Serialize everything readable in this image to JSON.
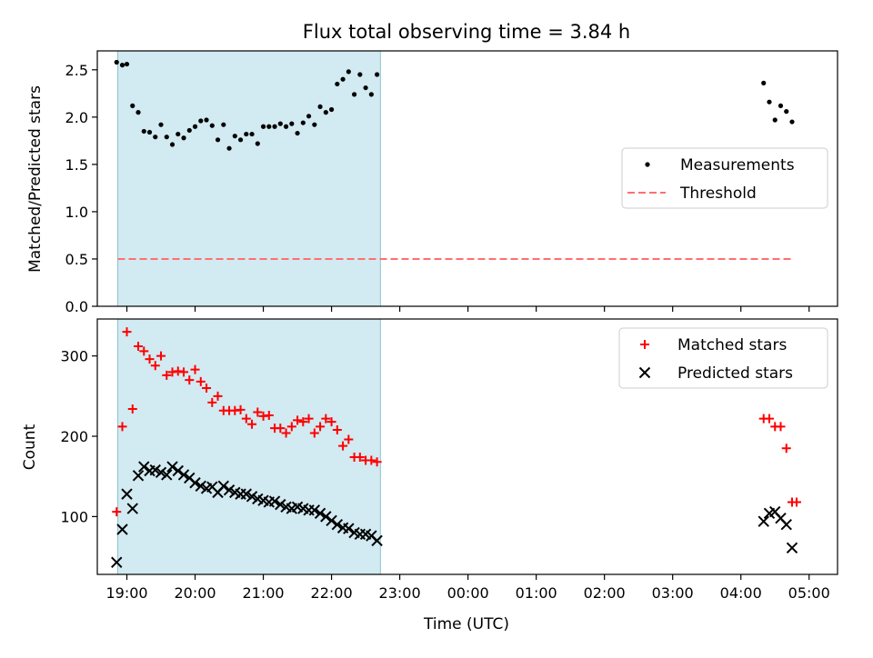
{
  "figure_title": "Flux total observing time = 3.84 h",
  "colors": {
    "shade": "#add8e6",
    "threshold": "#ff6f6f",
    "matched": "#ff0000",
    "predicted": "#000000",
    "measurement": "#000000"
  },
  "chart_data": [
    {
      "type": "scatter",
      "title": "Flux total observing time = 3.84 h",
      "xlabel": "",
      "ylabel": "Matched/Predicted stars",
      "ylim": [
        0,
        2.7
      ],
      "yticks": [
        "0.0",
        "0.5",
        "1.0",
        "1.5",
        "2.0",
        "2.5"
      ],
      "shaded_interval": [
        "18:52",
        "22:43"
      ],
      "legend_position": "center-right",
      "series": [
        {
          "name": "Measurements",
          "marker": "dot",
          "x": [
            "18:51",
            "18:56",
            "19:00",
            "19:05",
            "19:10",
            "19:15",
            "19:20",
            "19:25",
            "19:30",
            "19:35",
            "19:40",
            "19:45",
            "19:50",
            "19:55",
            "20:00",
            "20:05",
            "20:10",
            "20:15",
            "20:20",
            "20:25",
            "20:30",
            "20:35",
            "20:40",
            "20:45",
            "20:50",
            "20:55",
            "21:00",
            "21:05",
            "21:10",
            "21:15",
            "21:20",
            "21:25",
            "21:30",
            "21:35",
            "21:40",
            "21:45",
            "21:50",
            "21:55",
            "22:00",
            "22:05",
            "22:10",
            "22:15",
            "22:20",
            "22:25",
            "22:30",
            "22:35",
            "22:40",
            "04:20",
            "04:25",
            "04:30",
            "04:35",
            "04:40",
            "04:45"
          ],
          "y": [
            2.58,
            2.55,
            2.56,
            2.12,
            2.05,
            1.85,
            1.84,
            1.79,
            1.92,
            1.79,
            1.71,
            1.82,
            1.78,
            1.86,
            1.9,
            1.96,
            1.97,
            1.91,
            1.76,
            1.92,
            1.67,
            1.8,
            1.76,
            1.82,
            1.82,
            1.72,
            1.9,
            1.9,
            1.9,
            1.93,
            1.9,
            1.93,
            1.83,
            1.94,
            2.01,
            1.92,
            2.11,
            2.05,
            2.08,
            2.35,
            2.4,
            2.48,
            2.24,
            2.45,
            2.31,
            2.24,
            2.45,
            2.36,
            2.16,
            1.97,
            2.12,
            2.06,
            1.95
          ]
        },
        {
          "name": "Threshold",
          "style": "dashed-line",
          "x": [
            "18:52",
            "04:45"
          ],
          "y": [
            0.5,
            0.5
          ]
        }
      ]
    },
    {
      "type": "scatter",
      "title": "",
      "xlabel": "Time (UTC)",
      "ylabel": "Count",
      "ylim": [
        28,
        346
      ],
      "yticks": [
        "100",
        "200",
        "300"
      ],
      "xticks": [
        "19:00",
        "20:00",
        "21:00",
        "22:00",
        "23:00",
        "00:00",
        "01:00",
        "02:00",
        "03:00",
        "04:00",
        "05:00"
      ],
      "shaded_interval": [
        "18:52",
        "22:43"
      ],
      "legend_position": "top-right",
      "series": [
        {
          "name": "Matched stars",
          "marker": "plus",
          "x": [
            "18:51",
            "18:56",
            "19:00",
            "19:05",
            "19:10",
            "19:15",
            "19:20",
            "19:25",
            "19:30",
            "19:35",
            "19:40",
            "19:45",
            "19:50",
            "19:55",
            "20:00",
            "20:05",
            "20:10",
            "20:15",
            "20:20",
            "20:25",
            "20:30",
            "20:35",
            "20:40",
            "20:45",
            "20:50",
            "20:55",
            "21:00",
            "21:05",
            "21:10",
            "21:15",
            "21:20",
            "21:25",
            "21:30",
            "21:35",
            "21:40",
            "21:45",
            "21:50",
            "21:55",
            "22:00",
            "22:05",
            "22:10",
            "22:15",
            "22:20",
            "22:25",
            "22:30",
            "22:35",
            "22:40",
            "04:20",
            "04:25",
            "04:30",
            "04:35",
            "04:40",
            "04:45",
            "04:49"
          ],
          "y": [
            106,
            212,
            330,
            234,
            312,
            306,
            296,
            288,
            300,
            276,
            280,
            281,
            280,
            270,
            283,
            268,
            260,
            242,
            250,
            232,
            232,
            232,
            233,
            222,
            215,
            230,
            225,
            226,
            210,
            210,
            204,
            212,
            220,
            218,
            222,
            204,
            212,
            222,
            218,
            208,
            188,
            196,
            174,
            174,
            170,
            170,
            168,
            222,
            222,
            212,
            212,
            185,
            118,
            118
          ]
        },
        {
          "name": "Predicted stars",
          "marker": "x",
          "x": [
            "18:51",
            "18:56",
            "19:00",
            "19:05",
            "19:10",
            "19:15",
            "19:20",
            "19:25",
            "19:30",
            "19:35",
            "19:40",
            "19:45",
            "19:50",
            "19:55",
            "20:00",
            "20:05",
            "20:10",
            "20:15",
            "20:20",
            "20:25",
            "20:30",
            "20:35",
            "20:40",
            "20:45",
            "20:50",
            "20:55",
            "21:00",
            "21:05",
            "21:10",
            "21:15",
            "21:20",
            "21:25",
            "21:30",
            "21:35",
            "21:40",
            "21:45",
            "21:50",
            "21:55",
            "22:00",
            "22:05",
            "22:10",
            "22:15",
            "22:20",
            "22:25",
            "22:30",
            "22:35",
            "22:40",
            "04:20",
            "04:25",
            "04:30",
            "04:35",
            "04:40",
            "04:45"
          ],
          "y": [
            43,
            84,
            128,
            110,
            151,
            162,
            157,
            158,
            155,
            152,
            162,
            157,
            152,
            148,
            142,
            138,
            135,
            137,
            130,
            138,
            133,
            130,
            128,
            128,
            125,
            122,
            120,
            118,
            119,
            115,
            112,
            110,
            112,
            110,
            108,
            108,
            104,
            100,
            95,
            90,
            86,
            85,
            80,
            78,
            78,
            76,
            70,
            94,
            104,
            106,
            98,
            90,
            61
          ]
        }
      ]
    }
  ]
}
